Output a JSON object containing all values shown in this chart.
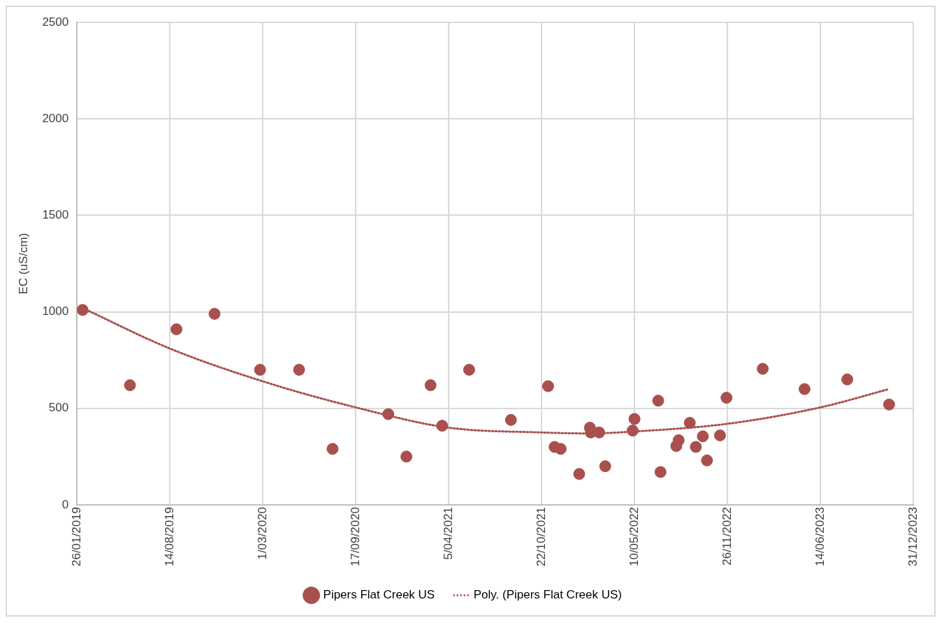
{
  "chart_data": {
    "type": "scatter",
    "ylabel": "EC (uS/cm)",
    "xlim": [
      "2019-01-26",
      "2023-12-31"
    ],
    "xticks": [
      {
        "value": "2019-01-26",
        "label": "26/01/2019"
      },
      {
        "value": "2019-08-14",
        "label": "14/08/2019"
      },
      {
        "value": "2020-03-01",
        "label": "1/03/2020"
      },
      {
        "value": "2020-09-17",
        "label": "17/09/2020"
      },
      {
        "value": "2021-04-05",
        "label": "5/04/2021"
      },
      {
        "value": "2021-10-22",
        "label": "22/10/2021"
      },
      {
        "value": "2022-05-10",
        "label": "10/05/2022"
      },
      {
        "value": "2022-11-26",
        "label": "26/11/2022"
      },
      {
        "value": "2023-06-14",
        "label": "14/06/2023"
      },
      {
        "value": "2023-12-31",
        "label": "31/12/2023"
      }
    ],
    "ylim": [
      0,
      2500
    ],
    "yticks": [
      0,
      500,
      1000,
      1500,
      2000,
      2500
    ],
    "grid": true,
    "legend": "bottom",
    "marker": "circle",
    "series": [
      {
        "name": "Pipers Flat Creek US",
        "color": "#a9504f",
        "x": [
          "2019-02-07",
          "2019-05-20",
          "2019-08-28",
          "2019-11-18",
          "2020-02-24",
          "2020-05-18",
          "2020-07-29",
          "2020-11-26",
          "2021-01-04",
          "2021-02-25",
          "2021-03-22",
          "2021-05-19",
          "2021-08-17",
          "2021-11-05",
          "2021-11-19",
          "2021-12-02",
          "2022-01-11",
          "2022-02-03",
          "2022-02-05",
          "2022-02-23",
          "2022-03-08",
          "2022-05-06",
          "2022-05-10",
          "2022-06-30",
          "2022-07-05",
          "2022-08-08",
          "2022-08-13",
          "2022-09-06",
          "2022-09-19",
          "2022-10-04",
          "2022-10-13",
          "2022-11-10",
          "2022-11-24",
          "2023-02-10",
          "2023-05-11",
          "2023-08-11",
          "2023-11-09"
        ],
        "values": [
          1010,
          620,
          910,
          990,
          700,
          700,
          290,
          470,
          250,
          620,
          410,
          700,
          440,
          615,
          300,
          290,
          160,
          400,
          375,
          375,
          200,
          385,
          445,
          540,
          170,
          305,
          335,
          425,
          300,
          355,
          230,
          360,
          555,
          705,
          600,
          650,
          520
        ]
      },
      {
        "name": "Poly. (Pipers Flat Creek US)",
        "type": "line",
        "color": "#a9504f",
        "line_style": "dotted",
        "marker": "none",
        "x": [
          "2019-02-07",
          "2019-08-14",
          "2020-03-01",
          "2020-09-17",
          "2021-04-05",
          "2021-10-22",
          "2022-01-30",
          "2022-05-10",
          "2022-11-26",
          "2023-06-14",
          "2023-11-09"
        ],
        "values": [
          1020,
          810,
          640,
          505,
          400,
          375,
          370,
          380,
          420,
          505,
          600
        ]
      }
    ]
  }
}
